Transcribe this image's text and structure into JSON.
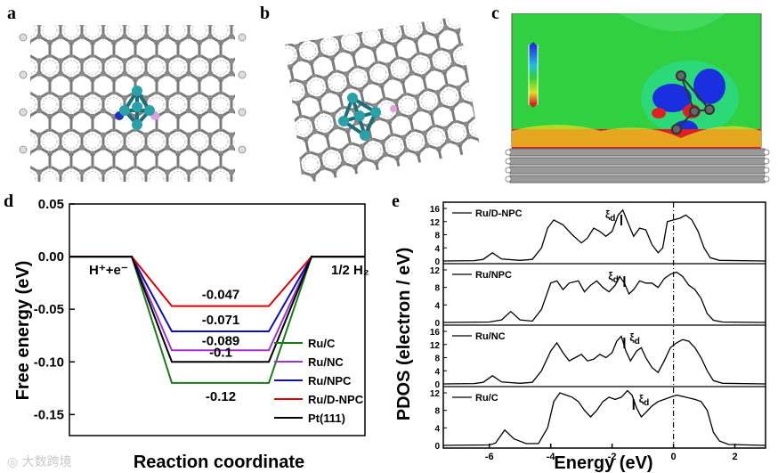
{
  "panel_labels": {
    "a": "a",
    "b": "b",
    "c": "c",
    "d": "d",
    "e": "e"
  },
  "watermark": "大数跨境",
  "chart_d": {
    "type": "line",
    "ylabel": "Free energy (eV)",
    "xlabel": "Reaction coordinate",
    "ylim": [
      -0.17,
      0.05
    ],
    "yticks": [
      "0.05",
      "0.00",
      "-0.05",
      "-0.10",
      "-0.15"
    ],
    "ytick_values": [
      0.05,
      0.0,
      -0.05,
      -0.1,
      -0.15
    ],
    "left_state": "H⁺+e⁻",
    "right_state": "1/2 H₂",
    "legend_position": "bottom-right",
    "series": [
      {
        "name": "Ru/C",
        "value": -0.12,
        "label": "-0.12",
        "color": "#1a7a1a"
      },
      {
        "name": "Ru/NC",
        "value": -0.089,
        "label": "-0.089",
        "color": "#a030d0"
      },
      {
        "name": "Ru/NPC",
        "value": -0.071,
        "label": "-0.071",
        "color": "#1010b0"
      },
      {
        "name": "Ru/D-NPC",
        "value": -0.047,
        "label": "-0.047",
        "color": "#e00000"
      },
      {
        "name": "Pt(111)",
        "value": -0.1,
        "label": "-0.1",
        "color": "#000000"
      }
    ]
  },
  "chart_e": {
    "type": "line",
    "ylabel": "PDOS (electron / eV)",
    "xlabel": "Energy (eV)",
    "xlim": [
      -7.5,
      3
    ],
    "xticks": [
      "-6",
      "-4",
      "-2",
      "0",
      "2"
    ],
    "xtick_values": [
      -6,
      -4,
      -2,
      0,
      2
    ],
    "xi_symbol": "ξ",
    "xi_subscript": "d",
    "fermi_level": 0,
    "subplots": [
      {
        "name": "Ru/D-NPC",
        "yticks": [
          "0",
          "4",
          "8",
          "12",
          "16"
        ],
        "ymax": 16,
        "d_center": -1.7,
        "xi_side": "left",
        "points": [
          [
            -7.5,
            0
          ],
          [
            -6.5,
            0.1
          ],
          [
            -6.2,
            0.5
          ],
          [
            -5.9,
            2.5
          ],
          [
            -5.6,
            0.6
          ],
          [
            -5,
            0.2
          ],
          [
            -4.6,
            0.5
          ],
          [
            -4.3,
            4
          ],
          [
            -4.1,
            10
          ],
          [
            -3.9,
            12.5
          ],
          [
            -3.6,
            11
          ],
          [
            -3.3,
            8
          ],
          [
            -3.0,
            5.5
          ],
          [
            -2.8,
            7
          ],
          [
            -2.6,
            10
          ],
          [
            -2.4,
            9
          ],
          [
            -2.2,
            7.5
          ],
          [
            -2.0,
            9
          ],
          [
            -1.8,
            14
          ],
          [
            -1.65,
            15.5
          ],
          [
            -1.5,
            12
          ],
          [
            -1.3,
            7.5
          ],
          [
            -1.1,
            10
          ],
          [
            -0.9,
            9.5
          ],
          [
            -0.7,
            5
          ],
          [
            -0.5,
            2.5
          ],
          [
            -0.35,
            4
          ],
          [
            -0.2,
            12
          ],
          [
            0,
            12.5
          ],
          [
            0.2,
            13
          ],
          [
            0.4,
            14
          ],
          [
            0.6,
            12.5
          ],
          [
            0.8,
            9
          ],
          [
            1.0,
            4
          ],
          [
            1.2,
            1
          ],
          [
            1.5,
            0.2
          ],
          [
            3,
            0
          ]
        ]
      },
      {
        "name": "Ru/NPC",
        "yticks": [
          "0",
          "4",
          "8",
          "12"
        ],
        "ymax": 12,
        "d_center": -1.6,
        "xi_side": "left",
        "points": [
          [
            -7.5,
            0
          ],
          [
            -6,
            0.1
          ],
          [
            -5.6,
            0.6
          ],
          [
            -5.3,
            2.5
          ],
          [
            -5.0,
            0.6
          ],
          [
            -4.6,
            0.3
          ],
          [
            -4.3,
            3
          ],
          [
            -4.0,
            9
          ],
          [
            -3.8,
            9.5
          ],
          [
            -3.6,
            7.5
          ],
          [
            -3.4,
            9
          ],
          [
            -3.1,
            9.5
          ],
          [
            -2.9,
            7
          ],
          [
            -2.7,
            8.5
          ],
          [
            -2.5,
            9.5
          ],
          [
            -2.3,
            8
          ],
          [
            -2.1,
            7
          ],
          [
            -1.9,
            8.5
          ],
          [
            -1.75,
            10.5
          ],
          [
            -1.6,
            9
          ],
          [
            -1.45,
            6.5
          ],
          [
            -1.3,
            7.5
          ],
          [
            -1.1,
            9.5
          ],
          [
            -0.9,
            9
          ],
          [
            -0.7,
            9
          ],
          [
            -0.5,
            8
          ],
          [
            -0.3,
            10
          ],
          [
            -0.1,
            11
          ],
          [
            0.1,
            11.5
          ],
          [
            0.3,
            10.5
          ],
          [
            0.5,
            8.5
          ],
          [
            0.7,
            7.5
          ],
          [
            0.9,
            5.5
          ],
          [
            1.1,
            2
          ],
          [
            1.3,
            0.5
          ],
          [
            1.6,
            0.1
          ],
          [
            3,
            0
          ]
        ]
      },
      {
        "name": "Ru/NC",
        "yticks": [
          "0",
          "4",
          "8",
          "12",
          "16"
        ],
        "ymax": 16,
        "d_center": -1.6,
        "xi_side": "right",
        "points": [
          [
            -7.5,
            0
          ],
          [
            -6.5,
            0.1
          ],
          [
            -6.2,
            0.5
          ],
          [
            -5.9,
            2.5
          ],
          [
            -5.6,
            0.6
          ],
          [
            -5,
            0.2
          ],
          [
            -4.6,
            0.5
          ],
          [
            -4.3,
            4
          ],
          [
            -4.0,
            10
          ],
          [
            -3.8,
            12.5
          ],
          [
            -3.6,
            9.5
          ],
          [
            -3.4,
            7
          ],
          [
            -3.2,
            8
          ],
          [
            -3.0,
            9
          ],
          [
            -2.8,
            7
          ],
          [
            -2.6,
            7.5
          ],
          [
            -2.4,
            9
          ],
          [
            -2.2,
            8
          ],
          [
            -2.0,
            9.5
          ],
          [
            -1.85,
            13
          ],
          [
            -1.7,
            14.5
          ],
          [
            -1.55,
            10
          ],
          [
            -1.4,
            7
          ],
          [
            -1.2,
            10
          ],
          [
            -1.05,
            11
          ],
          [
            -0.9,
            8
          ],
          [
            -0.7,
            5
          ],
          [
            -0.5,
            3.5
          ],
          [
            -0.3,
            7
          ],
          [
            -0.1,
            11
          ],
          [
            0.1,
            12.5
          ],
          [
            0.3,
            13.5
          ],
          [
            0.5,
            13
          ],
          [
            0.7,
            11
          ],
          [
            0.9,
            8
          ],
          [
            1.1,
            4
          ],
          [
            1.3,
            1
          ],
          [
            1.6,
            0.2
          ],
          [
            3,
            0
          ]
        ]
      },
      {
        "name": "Ru/C",
        "yticks": [
          "0",
          "4",
          "8",
          "12"
        ],
        "ymax": 12,
        "d_center": -1.3,
        "xi_side": "right",
        "points": [
          [
            -7.5,
            0
          ],
          [
            -6,
            0.1
          ],
          [
            -5.8,
            0.5
          ],
          [
            -5.5,
            3.5
          ],
          [
            -5.2,
            1.5
          ],
          [
            -4.8,
            0.4
          ],
          [
            -4.4,
            0.4
          ],
          [
            -4.1,
            4
          ],
          [
            -3.9,
            10
          ],
          [
            -3.7,
            12
          ],
          [
            -3.5,
            11.5
          ],
          [
            -3.3,
            11
          ],
          [
            -3.1,
            10
          ],
          [
            -2.9,
            8
          ],
          [
            -2.7,
            6.5
          ],
          [
            -2.5,
            8
          ],
          [
            -2.3,
            10
          ],
          [
            -2.1,
            11
          ],
          [
            -1.9,
            10.5
          ],
          [
            -1.7,
            11
          ],
          [
            -1.5,
            12.5
          ],
          [
            -1.35,
            11.5
          ],
          [
            -1.2,
            8.5
          ],
          [
            -1.05,
            6.5
          ],
          [
            -0.9,
            7.5
          ],
          [
            -0.7,
            9
          ],
          [
            -0.5,
            10
          ],
          [
            -0.3,
            10.5
          ],
          [
            -0.1,
            11
          ],
          [
            0.1,
            11.5
          ],
          [
            0.4,
            11
          ],
          [
            0.7,
            10.5
          ],
          [
            0.9,
            10
          ],
          [
            1.1,
            8
          ],
          [
            1.3,
            3
          ],
          [
            1.5,
            1
          ],
          [
            1.8,
            0.2
          ],
          [
            3,
            0
          ]
        ]
      }
    ]
  }
}
